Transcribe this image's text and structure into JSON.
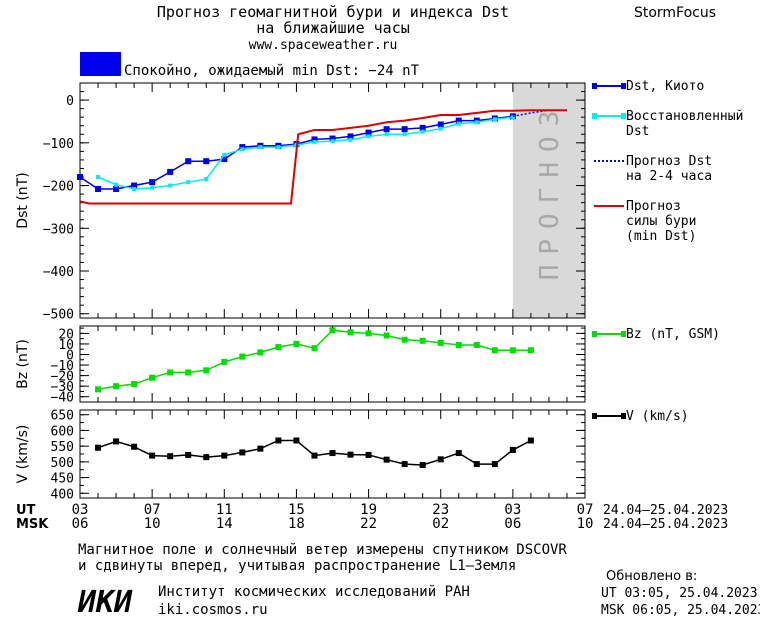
{
  "header": {
    "title_line1": "Прогноз геомагнитной бури и индекса Dst",
    "title_line2": "на ближайшие часы",
    "website": "www.spaceweather.ru",
    "brand": "StormFocus"
  },
  "status": {
    "text": "Спокойно, ожидаемый min Dst: −24 nT",
    "color": "#0000ee"
  },
  "chart_data": [
    {
      "type": "line",
      "ylabel": "Dst (nT)",
      "ylim": [
        -510,
        40
      ],
      "yticks": [
        0,
        -100,
        -200,
        -300,
        -400,
        -500
      ],
      "ytick_labels": [
        "0",
        "−100",
        "−200",
        "−300",
        "−400",
        "−500"
      ],
      "xlim": [
        3,
        31
      ],
      "forecast_band": {
        "label": "ПРОГНОЗ",
        "x_start": 27,
        "x_end": 31
      },
      "series": [
        {
          "name": "Dst, Киото",
          "color": "#0000ee",
          "x": [
            3,
            4,
            5,
            6,
            7,
            8,
            9,
            10,
            11,
            12,
            13,
            14,
            15,
            16,
            17,
            18,
            19,
            20,
            21,
            22,
            23,
            24,
            25,
            26,
            27
          ],
          "y": [
            -180,
            -208,
            -208,
            -200,
            -192,
            -168,
            -143,
            -143,
            -138,
            -110,
            -107,
            -107,
            -103,
            -92,
            -90,
            -85,
            -76,
            -68,
            -68,
            -65,
            -57,
            -48,
            -48,
            -43,
            -38
          ]
        },
        {
          "name": "Восстановленный Dst",
          "color": "#00eeee",
          "x": [
            4,
            5,
            6,
            7,
            8,
            9,
            10,
            11,
            12,
            13,
            14,
            15,
            16,
            17,
            18,
            19,
            20,
            21,
            22,
            23,
            24,
            25,
            26,
            27
          ],
          "y": [
            -180,
            -198,
            -208,
            -205,
            -200,
            -192,
            -185,
            -128,
            -115,
            -110,
            -110,
            -105,
            -98,
            -96,
            -93,
            -85,
            -80,
            -80,
            -74,
            -67,
            -55,
            -52,
            -45,
            -40
          ]
        },
        {
          "name": "Прогноз Dst на 2-4 часа",
          "color": "#0000ee",
          "dashed": true,
          "x": [
            27,
            28,
            29
          ],
          "y": [
            -38,
            -30,
            -24
          ]
        },
        {
          "name": "Прогноз силы бури (min Dst)",
          "color": "#dd0000",
          "x": [
            3,
            3.5,
            3.5,
            14.7,
            14.7,
            15.1,
            16,
            17,
            18,
            19,
            20,
            21,
            22,
            23,
            24,
            25,
            26,
            27,
            28,
            29,
            30
          ],
          "y": [
            -237,
            -242,
            -242,
            -242,
            -242,
            -80,
            -70,
            -70,
            -65,
            -60,
            -52,
            -48,
            -42,
            -35,
            -35,
            -30,
            -25,
            -25,
            -24,
            -24,
            -24
          ]
        }
      ],
      "legend": [
        {
          "label_lines": [
            "Dst, Киото"
          ],
          "color": "#0000ee",
          "style": "solid-marker"
        },
        {
          "label_lines": [
            "Восстановленный",
            "Dst"
          ],
          "color": "#00eeee",
          "style": "solid-marker"
        },
        {
          "label_lines": [
            "Прогноз Dst",
            "на 2-4 часа"
          ],
          "color": "#0000ee",
          "style": "dotted"
        },
        {
          "label_lines": [
            "Прогноз",
            "силы бури",
            "(min Dst)"
          ],
          "color": "#dd0000",
          "style": "solid"
        }
      ]
    },
    {
      "type": "line",
      "ylabel": "Bz (nT)",
      "ylim": [
        -45,
        27
      ],
      "yticks": [
        20,
        10,
        0,
        -10,
        -20,
        -30,
        -40
      ],
      "ytick_labels": [
        "20",
        "10",
        "0",
        "−10",
        "−20",
        "−30",
        "−40"
      ],
      "xlim": [
        3,
        31
      ],
      "series": [
        {
          "name": "Bz (nT, GSM)",
          "color": "#00dd00",
          "x": [
            4,
            5,
            6,
            7,
            8,
            9,
            10,
            11,
            12,
            13,
            14,
            15,
            16,
            17,
            18,
            19,
            20,
            21,
            22,
            23,
            24,
            25,
            26,
            27,
            28
          ],
          "y": [
            -33,
            -30,
            -28,
            -22,
            -17,
            -17,
            -15,
            -7,
            -2,
            2,
            7,
            10,
            6,
            23,
            21,
            20,
            18,
            14,
            13,
            11,
            9,
            9,
            4,
            4,
            4
          ]
        }
      ],
      "legend": [
        {
          "label_lines": [
            "Bz (nT, GSM)"
          ],
          "color": "#00dd00",
          "style": "solid-marker"
        }
      ]
    },
    {
      "type": "line",
      "ylabel": "V (km/s)",
      "ylim": [
        385,
        665
      ],
      "yticks": [
        650,
        600,
        550,
        500,
        450,
        400
      ],
      "ytick_labels": [
        "650",
        "600",
        "550",
        "500",
        "450",
        "400"
      ],
      "xlim": [
        3,
        31
      ],
      "series": [
        {
          "name": "V (km/s)",
          "color": "#000000",
          "x": [
            4,
            5,
            6,
            7,
            8,
            9,
            10,
            11,
            12,
            13,
            14,
            15,
            16,
            17,
            18,
            19,
            20,
            21,
            22,
            23,
            24,
            25,
            26,
            27,
            28
          ],
          "y": [
            545,
            565,
            548,
            520,
            518,
            522,
            515,
            520,
            530,
            542,
            568,
            568,
            520,
            528,
            523,
            522,
            507,
            493,
            490,
            508,
            528,
            493,
            493,
            538,
            568
          ]
        }
      ],
      "legend": [
        {
          "label_lines": [
            "V (km/s)"
          ],
          "color": "#000000",
          "style": "solid-marker"
        }
      ]
    }
  ],
  "time_axis": {
    "ut_label": "UT",
    "msk_label": "MSK",
    "ut_ticks": [
      "03",
      "07",
      "11",
      "15",
      "19",
      "23",
      "03",
      "07"
    ],
    "msk_ticks": [
      "06",
      "10",
      "14",
      "18",
      "22",
      "02",
      "06",
      "10"
    ],
    "tick_x": [
      3,
      7,
      11,
      15,
      19,
      23,
      27,
      31
    ],
    "date_range_ut": "24.04–25.04.2023",
    "date_range_msk": "24.04–25.04.2023"
  },
  "footer": {
    "note_line1": "Магнитное поле и солнечный ветер измерены спутником DSCOVR",
    "note_line2": "и сдвинуты вперед, учитывая распространение L1–Земля",
    "logo_text": "ИКИ",
    "institute": "Институт космических исследований РАН",
    "institute_site": "iki.cosmos.ru",
    "updated_label": "Обновлено в:",
    "updated_ut": "UT   03:05, 25.04.2023",
    "updated_msk": "MSK 06:05, 25.04.2023"
  }
}
